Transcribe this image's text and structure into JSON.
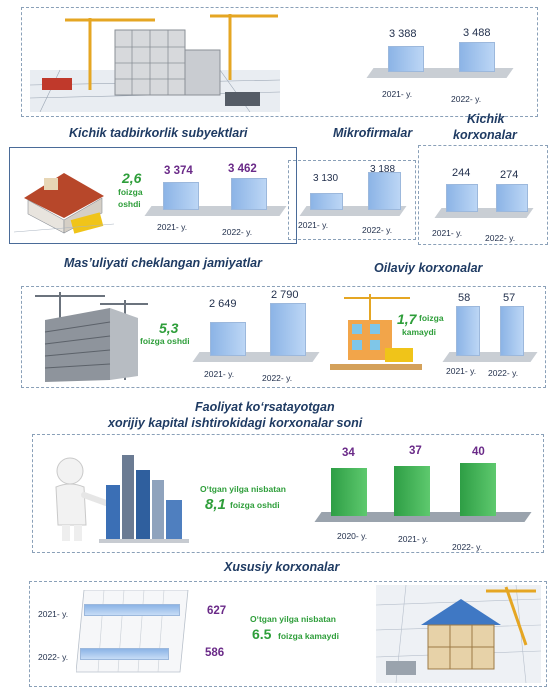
{
  "colors": {
    "blue_bar": "#9fc1ec",
    "green_bar": "#3fb257",
    "title": "#1f3b63",
    "purple": "#6a2a88",
    "green_text": "#2e9e3a"
  },
  "top_panel": {
    "values": [
      "3 388",
      "3 488"
    ],
    "years": [
      "2021- y.",
      "2022- y."
    ]
  },
  "titles": {
    "kichik_tadbirkorlik": "Kichik tadbirkorlik subyektlari",
    "mikrofirmalar": "Mikrofirmalar",
    "kichik_korxonalar_1": "Kichik",
    "kichik_korxonalar_2": "korxonalar",
    "mchj": "Mas’uliyati cheklangan jamiyatlar",
    "oilaviy": "Oilaviy korxonalar",
    "xorijiy_1": "Faoliyat ko‘rsatayotgan",
    "xorijiy_2": "xorijiy kapital ishtirokidagi korxonalar soni",
    "xususiy": "Xususiy korxonalar"
  },
  "kichik_tadbirkorlik": {
    "change": "2,6",
    "change_text_1": "foizga",
    "change_text_2": "oshdi",
    "values": [
      "3 374",
      "3 462"
    ],
    "years": [
      "2021- y.",
      "2022- y."
    ]
  },
  "mikrofirmalar": {
    "values": [
      "3 130",
      "3 188"
    ],
    "years": [
      "2021- y.",
      "2022- y."
    ]
  },
  "kichik_korxonalar": {
    "values": [
      "244",
      "274"
    ],
    "years": [
      "2021- y.",
      "2022- y."
    ]
  },
  "mchj": {
    "change": "5,3",
    "change_text": "foizga oshdi",
    "values": [
      "2 649",
      "2 790"
    ],
    "years": [
      "2021- y.",
      "2022- y."
    ]
  },
  "oilaviy": {
    "change": "1,7",
    "change_text_1": "foizga",
    "change_text_2": "kamaydi",
    "values": [
      "58",
      "57"
    ],
    "years": [
      "2021- y.",
      "2022- y."
    ]
  },
  "xorijiy": {
    "note": "O‘tgan yilga nisbatan",
    "change": "8,1",
    "change_text": "foizga oshdi",
    "values": [
      "34",
      "37",
      "40"
    ],
    "years": [
      "2020- y.",
      "2021- y.",
      "2022- y."
    ]
  },
  "xususiy": {
    "note": "O‘tgan yilga nisbatan",
    "change": "6.5",
    "change_text": "foizga kamaydi",
    "values": [
      "627",
      "586"
    ],
    "years": [
      "2021- y.",
      "2022- y."
    ]
  },
  "chart_data": [
    {
      "type": "bar",
      "categories": [
        "2021- y.",
        "2022- y."
      ],
      "values": [
        3388,
        3488
      ]
    },
    {
      "type": "bar",
      "title": "Kichik tadbirkorlik subyektlari",
      "categories": [
        "2021- y.",
        "2022- y."
      ],
      "values": [
        3374,
        3462
      ]
    },
    {
      "type": "bar",
      "title": "Mikrofirmalar",
      "categories": [
        "2021- y.",
        "2022- y."
      ],
      "values": [
        3130,
        3188
      ]
    },
    {
      "type": "bar",
      "title": "Kichik korxonalar",
      "categories": [
        "2021- y.",
        "2022- y."
      ],
      "values": [
        244,
        274
      ]
    },
    {
      "type": "bar",
      "title": "Mas’uliyati cheklangan jamiyatlar",
      "categories": [
        "2021- y.",
        "2022- y."
      ],
      "values": [
        2649,
        2790
      ]
    },
    {
      "type": "bar",
      "title": "Oilaviy korxonalar",
      "categories": [
        "2021- y.",
        "2022- y."
      ],
      "values": [
        58,
        57
      ]
    },
    {
      "type": "bar",
      "title": "Faoliyat ko‘rsatayotgan xorijiy kapital ishtirokidagi korxonalar soni",
      "categories": [
        "2020- y.",
        "2021- y.",
        "2022- y."
      ],
      "values": [
        34,
        37,
        40
      ]
    },
    {
      "type": "bar",
      "title": "Xususiy korxonalar",
      "categories": [
        "2021- y.",
        "2022- y."
      ],
      "values": [
        627,
        586
      ]
    }
  ]
}
